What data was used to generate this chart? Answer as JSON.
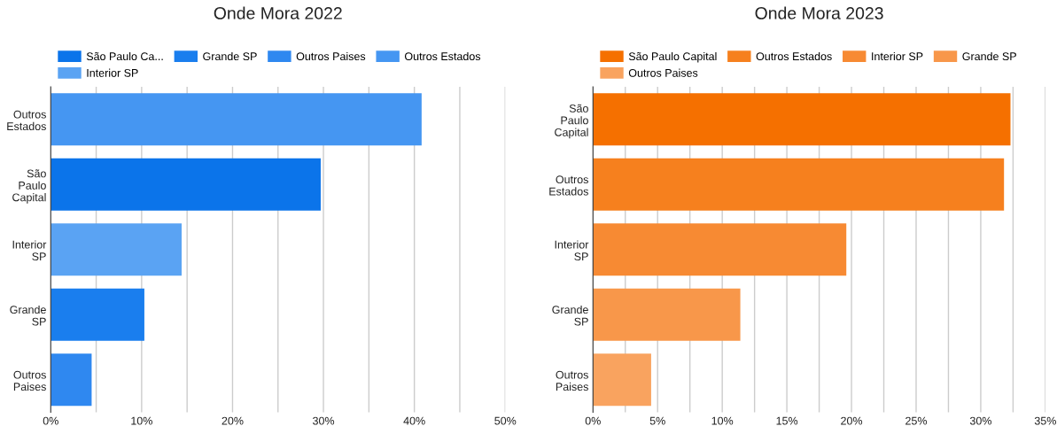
{
  "chart_data": [
    {
      "type": "bar",
      "orientation": "horizontal",
      "title": "Onde Mora 2022",
      "categories": [
        "Outros Estados",
        "São Paulo Capital",
        "Interior SP",
        "Grande SP",
        "Outros Paises"
      ],
      "series": [
        {
          "name": "São Paulo Ca...",
          "color": "#0b74ea",
          "values": [
            null,
            29.7,
            null,
            null,
            null
          ]
        },
        {
          "name": "Grande SP",
          "color": "#1a7eee",
          "values": [
            null,
            null,
            null,
            10.3,
            null
          ]
        },
        {
          "name": "Outros Paises",
          "color": "#2f88f0",
          "values": [
            null,
            null,
            null,
            null,
            4.5
          ]
        },
        {
          "name": "Outros Estados",
          "color": "#4596f2",
          "values": [
            40.8,
            null,
            null,
            null,
            null
          ]
        },
        {
          "name": "Interior SP",
          "color": "#5aa3f3",
          "values": [
            null,
            null,
            14.4,
            null,
            null
          ]
        }
      ],
      "xlim": [
        0,
        50
      ],
      "xticks": [
        {
          "value": 0,
          "label": "0%"
        },
        {
          "value": 5,
          "label": null
        },
        {
          "value": 10,
          "label": "10%"
        },
        {
          "value": 15,
          "label": null
        },
        {
          "value": 20,
          "label": "20%"
        },
        {
          "value": 25,
          "label": null
        },
        {
          "value": 30,
          "label": "30%"
        },
        {
          "value": 35,
          "label": null
        },
        {
          "value": 40,
          "label": "40%"
        },
        {
          "value": 45,
          "label": null
        },
        {
          "value": 50,
          "label": "50%"
        }
      ],
      "grid": "x",
      "legend": "top"
    },
    {
      "type": "bar",
      "orientation": "horizontal",
      "title": "Onde Mora 2023",
      "categories": [
        "São Paulo Capital",
        "Outros Estados",
        "Interior SP",
        "Grande SP",
        "Outros Paises"
      ],
      "series": [
        {
          "name": "São Paulo Capital",
          "color": "#f57000",
          "values": [
            32.3,
            null,
            null,
            null,
            null
          ]
        },
        {
          "name": "Outros Estados",
          "color": "#f6801e",
          "values": [
            null,
            31.8,
            null,
            null,
            null
          ]
        },
        {
          "name": "Interior SP",
          "color": "#f78a33",
          "values": [
            null,
            null,
            19.6,
            null,
            null
          ]
        },
        {
          "name": "Grande SP",
          "color": "#f8974a",
          "values": [
            null,
            null,
            null,
            11.4,
            null
          ]
        },
        {
          "name": "Outros Paises",
          "color": "#f9a35f",
          "values": [
            null,
            null,
            null,
            null,
            4.5
          ]
        }
      ],
      "xlim": [
        0,
        35
      ],
      "xticks": [
        {
          "value": 0,
          "label": "0%"
        },
        {
          "value": 2.5,
          "label": null
        },
        {
          "value": 5,
          "label": "5%"
        },
        {
          "value": 7.5,
          "label": null
        },
        {
          "value": 10,
          "label": "10%"
        },
        {
          "value": 12.5,
          "label": null
        },
        {
          "value": 15,
          "label": "15%"
        },
        {
          "value": 17.5,
          "label": null
        },
        {
          "value": 20,
          "label": "20%"
        },
        {
          "value": 22.5,
          "label": null
        },
        {
          "value": 25,
          "label": "25%"
        },
        {
          "value": 27.5,
          "label": null
        },
        {
          "value": 30,
          "label": "30%"
        },
        {
          "value": 32.5,
          "label": null
        },
        {
          "value": 35,
          "label": "35%"
        }
      ],
      "grid": "x",
      "legend": "top"
    }
  ]
}
